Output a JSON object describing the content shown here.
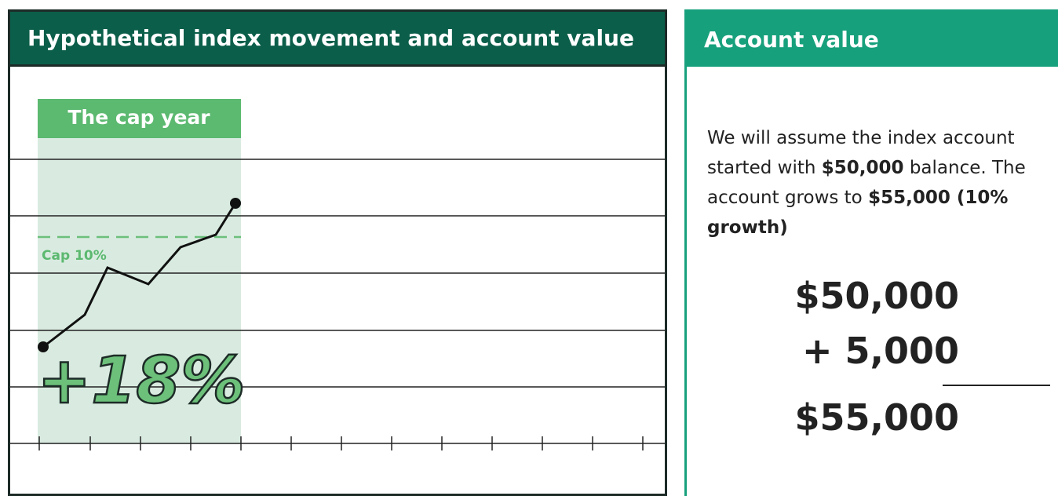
{
  "left_panel": {
    "title": "Hypothetical index movement and account value",
    "highlight_label": "The cap year",
    "cap_label": "Cap 10%",
    "result_label": "+18%"
  },
  "right_panel": {
    "title": "Account value",
    "paragraph": [
      {
        "text": "We will assume the index account started with "
      },
      {
        "text": "$50,000",
        "bold": true
      },
      {
        "text": " balance. The account grows to "
      },
      {
        "text": "$55,000 (10% growth)",
        "bold": true
      }
    ],
    "sum": {
      "start": "$50,000",
      "add": "+ 5,000",
      "total": "$55,000"
    }
  }
}
